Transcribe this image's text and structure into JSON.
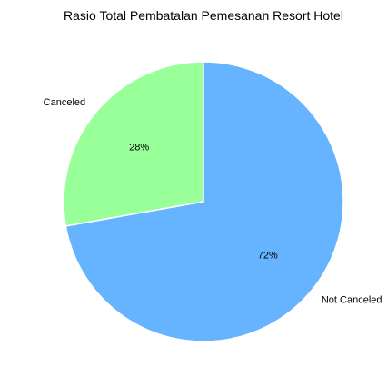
{
  "chart_data": {
    "type": "pie",
    "title": "Rasio Total Pembatalan Pemesanan Resort Hotel",
    "start_angle_deg": 90,
    "direction": "counterclockwise",
    "slices": [
      {
        "label": "Canceled",
        "value": 27.8,
        "pct_label": "28%",
        "color": "#99ff99"
      },
      {
        "label": "Not Canceled",
        "value": 72.2,
        "pct_label": "72%",
        "color": "#66b3ff"
      }
    ],
    "wedge_edge_color": "#ffffff"
  }
}
